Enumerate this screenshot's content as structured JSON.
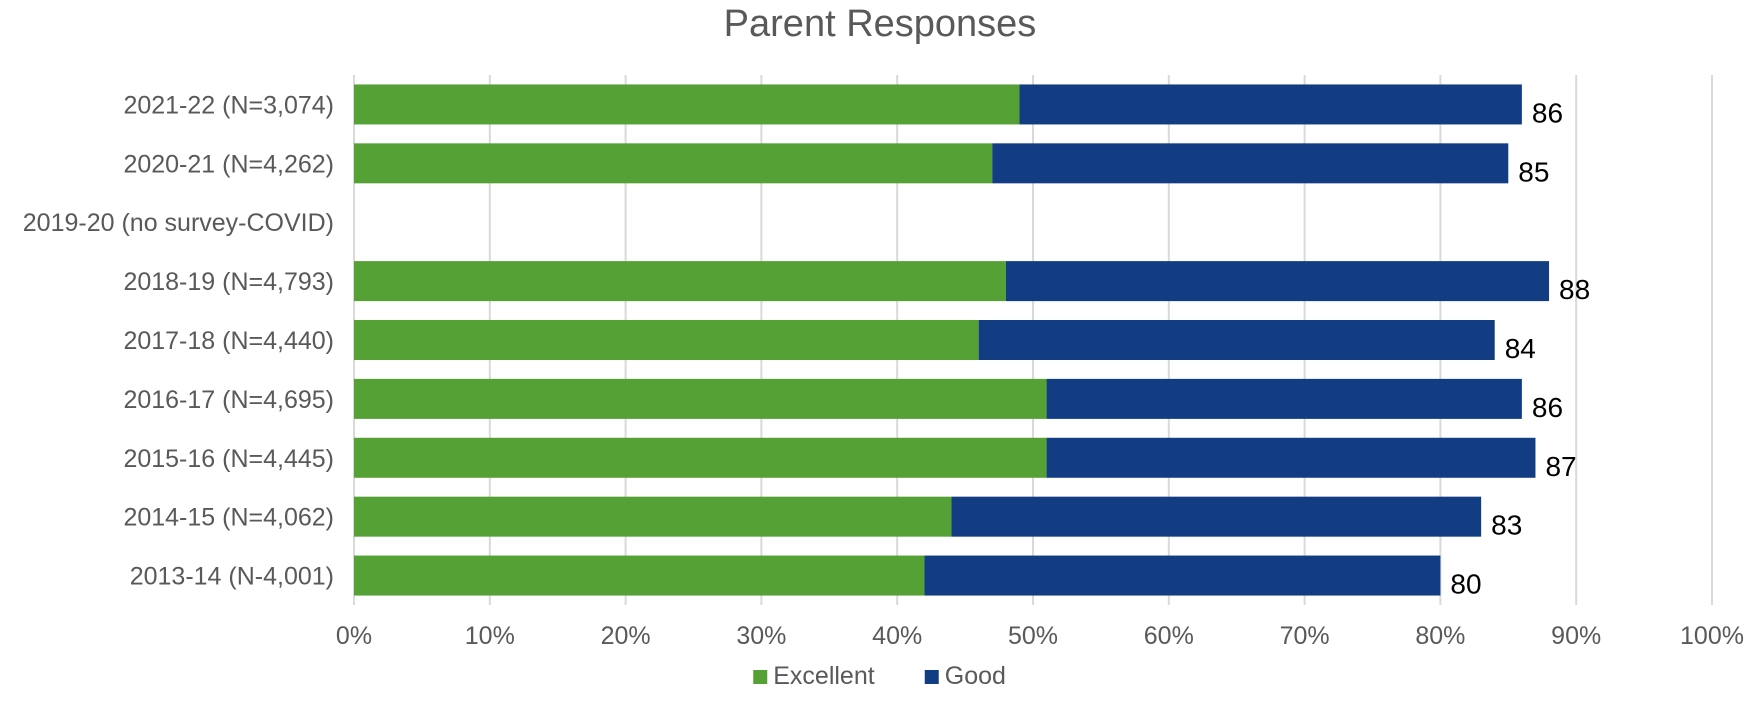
{
  "chart_data": {
    "type": "bar",
    "orientation": "horizontal",
    "stacked": true,
    "title": "Parent Responses",
    "categories": [
      "2021-22 (N=3,074)",
      "2020-21 (N=4,262)",
      "2019-20 (no survey-COVID)",
      "2018-19 (N=4,793)",
      "2017-18 (N=4,440)",
      "2016-17 (N=4,695)",
      "2015-16 (N=4,445)",
      "2014-15 (N=4,062)",
      "2013-14 (N-4,001)"
    ],
    "series": [
      {
        "name": "Excellent",
        "color": "#55a135",
        "values": [
          49,
          47,
          null,
          48,
          46,
          51,
          51,
          44,
          42
        ]
      },
      {
        "name": "Good",
        "color": "#123d82",
        "values": [
          37,
          38,
          null,
          40,
          38,
          35,
          36,
          39,
          38
        ]
      }
    ],
    "total_labels": [
      "86",
      "85",
      "",
      "88",
      "84",
      "86",
      "87",
      "83",
      "80"
    ],
    "xlim": [
      0,
      100
    ],
    "x_ticks": [
      "0%",
      "10%",
      "20%",
      "30%",
      "40%",
      "50%",
      "60%",
      "70%",
      "80%",
      "90%",
      "100%"
    ],
    "grid": true,
    "legend_position": "bottom"
  }
}
